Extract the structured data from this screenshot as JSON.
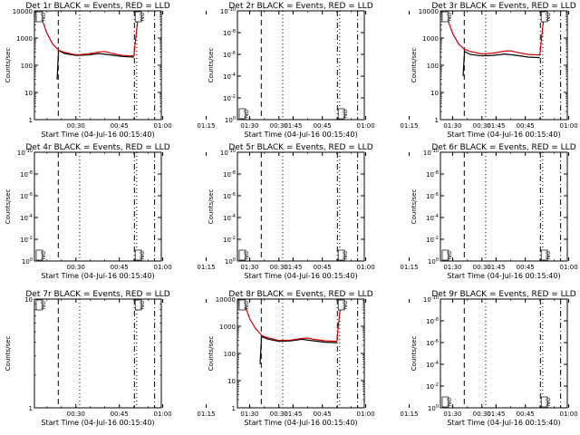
{
  "chart_data": [
    {
      "type": "line",
      "title": "Det 1r BLACK = Events, RED = LLD",
      "ylabel": "Counts/sec",
      "xlabel": "Start Time (04-Jul-16 00:15:40)",
      "yscale": "log",
      "ylim": [
        1,
        10000
      ],
      "yticks": [
        "1",
        "10",
        "100",
        "1000",
        "10000"
      ],
      "xlim": [
        15.67,
        59.5
      ],
      "xticks": [
        "00:30",
        "00:45",
        "01:00",
        "01:15",
        "01:30",
        "01:45"
      ],
      "vlines": [
        {
          "t": 23.9,
          "style": "dashed"
        },
        {
          "t": 31.3,
          "style": "dotted"
        },
        {
          "t": 50.2,
          "style": "dashdot"
        },
        {
          "t": 51.0,
          "style": "dotted"
        },
        {
          "t": 57.2,
          "style": "dashdot"
        }
      ],
      "annotations": [
        {
          "text": "DN",
          "t": 16.6,
          "y": 10000
        },
        {
          "text": "DN",
          "t": 50.8,
          "y": 10000
        }
      ],
      "series": [
        {
          "name": "Events",
          "color": "#000000",
          "x": [
            23.5,
            24.0,
            26,
            30,
            34,
            38,
            42,
            46,
            50.0
          ],
          "y": [
            30,
            350,
            270,
            230,
            240,
            270,
            240,
            210,
            200
          ]
        },
        {
          "name": "LLD",
          "color": "#cc0000",
          "x": [
            15.7,
            18,
            20,
            22,
            23.6,
            24.2,
            26,
            30,
            34,
            38,
            40,
            42,
            46,
            50.0,
            51.0,
            51.8
          ],
          "y": [
            10000,
            6000,
            1500,
            600,
            400,
            350,
            300,
            240,
            260,
            310,
            320,
            280,
            230,
            220,
            2000,
            10000
          ]
        }
      ]
    },
    {
      "type": "line",
      "title": "Det 2r BLACK = Events, RED = LLD",
      "ylabel": "Counts/sec",
      "xlabel": "Start Time (04-Jul-16 00:15:40)",
      "yscale": "log",
      "ylim": [
        1,
        10000000000
      ],
      "yticks": [
        "10^0",
        "10^-2",
        "10^-4",
        "10^-6",
        "10^-8",
        "10^-10"
      ],
      "xlim": [
        15.67,
        59.5
      ],
      "xticks": [
        "00:30",
        "00:45",
        "01:00",
        "01:15",
        "01:30",
        "01:45"
      ],
      "vlines": [
        {
          "t": 23.9,
          "style": "dashed"
        },
        {
          "t": 31.3,
          "style": "dotted"
        },
        {
          "t": 50.2,
          "style": "dashdot"
        },
        {
          "t": 51.0,
          "style": "dotted"
        },
        {
          "t": 57.2,
          "style": "dashdot"
        }
      ],
      "annotations": [
        {
          "text": "DN",
          "t": 16.6,
          "y": 1
        },
        {
          "text": "DN",
          "t": 50.8,
          "y": 1
        }
      ],
      "series": []
    },
    {
      "type": "line",
      "title": "Det 3r BLACK = Events, RED = LLD",
      "ylabel": "Counts/sec",
      "xlabel": "Start Time (04-Jul-16 00:15:40)",
      "yscale": "log",
      "ylim": [
        1,
        10000
      ],
      "yticks": [
        "1",
        "10",
        "100",
        "1000",
        "10000"
      ],
      "xlim": [
        15.67,
        59.5
      ],
      "xticks": [
        "00:30",
        "00:45",
        "01:00",
        "01:15",
        "01:30",
        "01:45"
      ],
      "vlines": [
        {
          "t": 23.9,
          "style": "dashed"
        },
        {
          "t": 31.3,
          "style": "dotted"
        },
        {
          "t": 50.2,
          "style": "dashdot"
        },
        {
          "t": 51.0,
          "style": "dotted"
        },
        {
          "t": 57.2,
          "style": "dashdot"
        }
      ],
      "annotations": [
        {
          "text": "DN",
          "t": 16.6,
          "y": 10000
        },
        {
          "text": "DN",
          "t": 50.8,
          "y": 10000
        }
      ],
      "series": [
        {
          "name": "Events",
          "color": "#000000",
          "x": [
            23.5,
            24.0,
            26,
            30,
            34,
            38,
            42,
            46,
            50.0
          ],
          "y": [
            40,
            320,
            250,
            220,
            230,
            260,
            230,
            200,
            190
          ]
        },
        {
          "name": "LLD",
          "color": "#cc0000",
          "x": [
            15.7,
            18,
            20,
            22,
            23.6,
            24.2,
            26,
            30,
            34,
            38,
            40,
            42,
            46,
            50.0,
            51.0,
            51.8
          ],
          "y": [
            10000,
            5500,
            1400,
            600,
            420,
            380,
            320,
            260,
            280,
            330,
            340,
            300,
            250,
            240,
            2500,
            10000
          ]
        }
      ]
    },
    {
      "type": "line",
      "title": "Det 4r BLACK = Events, RED = LLD",
      "ylabel": "Counts/sec",
      "xlabel": "Start Time (04-Jul-16 00:15:40)",
      "yscale": "log",
      "ylim": [
        1,
        10000000000
      ],
      "yticks": [
        "10^0",
        "10^-2",
        "10^-4",
        "10^-6",
        "10^-8",
        "10^-10"
      ],
      "xlim": [
        15.67,
        59.5
      ],
      "xticks": [
        "00:30",
        "00:45",
        "01:00",
        "01:15",
        "01:30",
        "01:45"
      ],
      "vlines": [
        {
          "t": 23.9,
          "style": "dashed"
        },
        {
          "t": 31.3,
          "style": "dotted"
        },
        {
          "t": 50.2,
          "style": "dashdot"
        },
        {
          "t": 51.0,
          "style": "dotted"
        },
        {
          "t": 57.2,
          "style": "dashdot"
        }
      ],
      "annotations": [
        {
          "text": "DN",
          "t": 16.6,
          "y": 1
        },
        {
          "text": "DN",
          "t": 50.8,
          "y": 1
        }
      ],
      "series": []
    },
    {
      "type": "line",
      "title": "Det 5r BLACK = Events, RED = LLD",
      "ylabel": "Counts/sec",
      "xlabel": "Start Time (04-Jul-16 00:15:40)",
      "yscale": "log",
      "ylim": [
        1,
        10000000000
      ],
      "yticks": [
        "10^0",
        "10^-2",
        "10^-4",
        "10^-6",
        "10^-8",
        "10^-10"
      ],
      "xlim": [
        15.67,
        59.5
      ],
      "xticks": [
        "00:30",
        "00:45",
        "01:00",
        "01:15",
        "01:30",
        "01:45"
      ],
      "vlines": [
        {
          "t": 23.9,
          "style": "dashed"
        },
        {
          "t": 31.3,
          "style": "dotted"
        },
        {
          "t": 50.2,
          "style": "dashdot"
        },
        {
          "t": 51.0,
          "style": "dotted"
        },
        {
          "t": 57.2,
          "style": "dashdot"
        }
      ],
      "annotations": [
        {
          "text": "DN",
          "t": 16.6,
          "y": 1
        },
        {
          "text": "DN",
          "t": 50.8,
          "y": 1
        }
      ],
      "series": []
    },
    {
      "type": "line",
      "title": "Det 6r BLACK = Events, RED = LLD",
      "ylabel": "Counts/sec",
      "xlabel": "Start Time (04-Jul-16 00:15:40)",
      "yscale": "log",
      "ylim": [
        1,
        10000000000
      ],
      "yticks": [
        "10^0",
        "10^-2",
        "10^-4",
        "10^-6",
        "10^-8",
        "10^-10"
      ],
      "xlim": [
        15.67,
        59.5
      ],
      "xticks": [
        "00:30",
        "00:45",
        "01:00",
        "01:15",
        "01:30",
        "01:45"
      ],
      "vlines": [
        {
          "t": 23.9,
          "style": "dashed"
        },
        {
          "t": 31.3,
          "style": "dotted"
        },
        {
          "t": 50.2,
          "style": "dashdot"
        },
        {
          "t": 51.0,
          "style": "dotted"
        },
        {
          "t": 57.2,
          "style": "dashdot"
        }
      ],
      "annotations": [
        {
          "text": "DN",
          "t": 16.6,
          "y": 1
        },
        {
          "text": "DN",
          "t": 50.8,
          "y": 1
        }
      ],
      "series": []
    },
    {
      "type": "line",
      "title": "Det 7r BLACK = Events, RED = LLD",
      "ylabel": "Counts/sec",
      "xlabel": "Start Time (04-Jul-16 00:15:40)",
      "yscale": "log",
      "ylim": [
        1,
        10
      ],
      "yticks": [
        "1",
        "10"
      ],
      "xlim": [
        15.67,
        59.5
      ],
      "xticks": [
        "00:30",
        "00:45",
        "01:00",
        "01:15",
        "01:30",
        "01:45"
      ],
      "vlines": [
        {
          "t": 23.9,
          "style": "dashed"
        },
        {
          "t": 31.3,
          "style": "dotted"
        },
        {
          "t": 50.2,
          "style": "dashdot"
        },
        {
          "t": 51.0,
          "style": "dotted"
        },
        {
          "t": 57.2,
          "style": "dashdot"
        }
      ],
      "annotations": [
        {
          "text": "DN",
          "t": 16.6,
          "y": 10
        },
        {
          "text": "DN",
          "t": 50.8,
          "y": 10
        }
      ],
      "series": []
    },
    {
      "type": "line",
      "title": "Det 8r BLACK = Events, RED = LLD",
      "ylabel": "Counts/sec",
      "xlabel": "Start Time (04-Jul-16 00:15:40)",
      "yscale": "log",
      "ylim": [
        1,
        10000
      ],
      "yticks": [
        "1",
        "10",
        "100",
        "1000",
        "10000"
      ],
      "xlim": [
        15.67,
        59.5
      ],
      "xticks": [
        "00:30",
        "00:45",
        "01:00",
        "01:15",
        "01:30",
        "01:45"
      ],
      "vlines": [
        {
          "t": 23.9,
          "style": "dashed"
        },
        {
          "t": 31.3,
          "style": "dotted"
        },
        {
          "t": 50.2,
          "style": "dashdot"
        },
        {
          "t": 51.0,
          "style": "dotted"
        },
        {
          "t": 57.2,
          "style": "dashdot"
        }
      ],
      "annotations": [
        {
          "text": "DN",
          "t": 16.6,
          "y": 10000
        },
        {
          "text": "DN",
          "t": 50.8,
          "y": 10000
        }
      ],
      "series": [
        {
          "name": "Events",
          "color": "#000000",
          "x": [
            23.5,
            24.0,
            26,
            30,
            34,
            38,
            42,
            46,
            50.0
          ],
          "y": [
            40,
            420,
            340,
            280,
            290,
            330,
            290,
            260,
            250
          ]
        },
        {
          "name": "LLD",
          "color": "#cc0000",
          "x": [
            15.7,
            18,
            20,
            22,
            23.6,
            24.2,
            26,
            30,
            34,
            38,
            40,
            42,
            46,
            50.0,
            51.0,
            51.8
          ],
          "y": [
            10000,
            7000,
            1800,
            800,
            520,
            450,
            380,
            300,
            310,
            360,
            370,
            330,
            290,
            280,
            3000,
            10000
          ]
        }
      ]
    },
    {
      "type": "line",
      "title": "Det 9r BLACK = Events, RED = LLD",
      "ylabel": "Counts/sec",
      "xlabel": "Start Time (04-Jul-16 00:15:40)",
      "yscale": "log",
      "ylim": [
        1,
        10000000000
      ],
      "yticks": [
        "10^0",
        "10^-2",
        "10^-4",
        "10^-6",
        "10^-8",
        "10^-10"
      ],
      "xlim": [
        15.67,
        59.5
      ],
      "xticks": [
        "00:30",
        "00:45",
        "01:00",
        "01:15",
        "01:30",
        "01:45"
      ],
      "vlines": [
        {
          "t": 23.9,
          "style": "dashed"
        },
        {
          "t": 31.3,
          "style": "dotted"
        },
        {
          "t": 50.2,
          "style": "dashdot"
        },
        {
          "t": 51.0,
          "style": "dotted"
        },
        {
          "t": 57.2,
          "style": "dashdot"
        }
      ],
      "annotations": [
        {
          "text": "DN",
          "t": 16.6,
          "y": 1
        },
        {
          "text": "DN",
          "t": 50.8,
          "y": 1
        }
      ],
      "series": []
    }
  ]
}
